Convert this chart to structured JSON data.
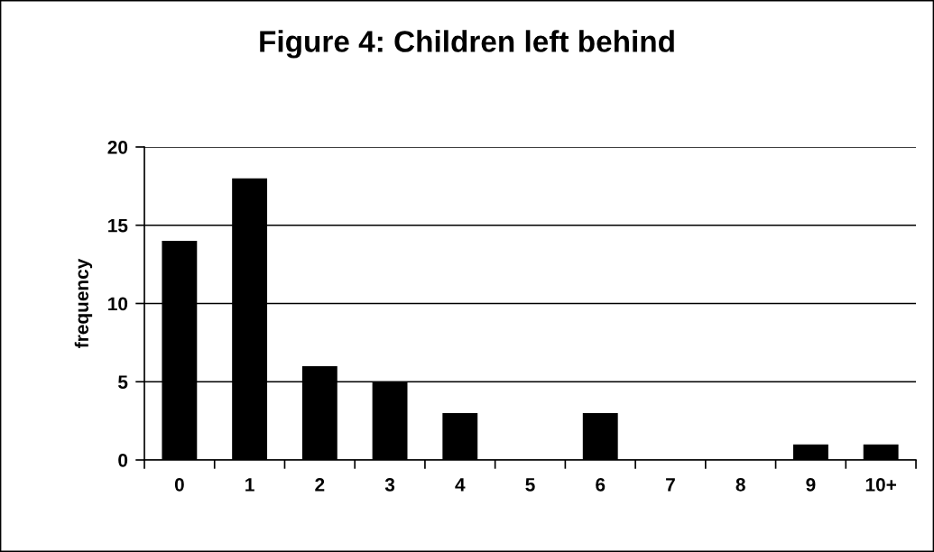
{
  "chart_data": {
    "type": "bar",
    "title": "Figure 4: Children left behind",
    "ylabel": "frequency",
    "categories": [
      "0",
      "1",
      "2",
      "3",
      "4",
      "5",
      "6",
      "7",
      "8",
      "9",
      "10+"
    ],
    "values": [
      14,
      18,
      6,
      5,
      3,
      0,
      3,
      0,
      0,
      1,
      1
    ],
    "color": "#000000",
    "ylim": [
      0,
      20
    ],
    "yticks": [
      0,
      5,
      10,
      15,
      20
    ],
    "grid": "y",
    "legend": false
  }
}
